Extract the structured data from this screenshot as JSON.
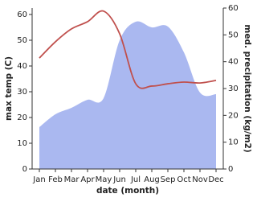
{
  "chart_data": {
    "type": "line-area",
    "x_label": "date (month)",
    "y_label": "max temp (C)",
    "y2_label": "med. precipitation (kg/m2)",
    "categories": [
      "Jan",
      "Feb",
      "Mar",
      "Apr",
      "May",
      "Jun",
      "Jul",
      "Aug",
      "Sep",
      "Oct",
      "Nov",
      "Dec"
    ],
    "ylim": [
      0,
      62.5
    ],
    "yticks": [
      0,
      10,
      20,
      30,
      40,
      50,
      60
    ],
    "y2lim": [
      0,
      60
    ],
    "y2ticks": [
      0,
      10,
      20,
      30,
      40,
      50,
      60
    ],
    "series": [
      {
        "name": "max temp",
        "color": "#c0504d",
        "kind": "line",
        "values": [
          43.1,
          49.4,
          54.4,
          57.2,
          61.3,
          52.5,
          33.1,
          32.2,
          33.1,
          33.75,
          33.4,
          34.4
        ]
      },
      {
        "name": "med. precipitation",
        "color": "#aab8f0",
        "kind": "area",
        "axis": "y2",
        "values": [
          15.6,
          20.4,
          22.8,
          25.8,
          26.4,
          48,
          54.9,
          52.8,
          53.1,
          43.5,
          28.5,
          27.9
        ]
      }
    ]
  }
}
